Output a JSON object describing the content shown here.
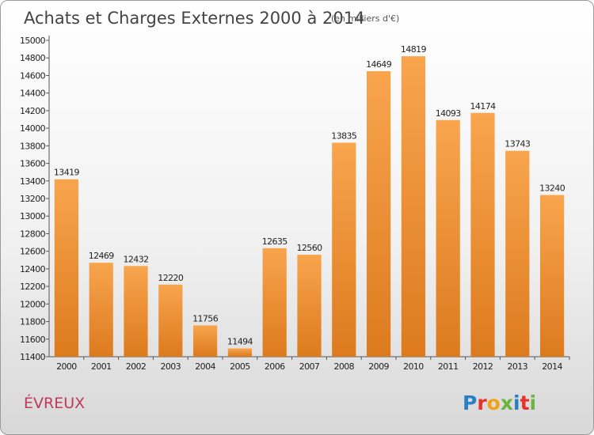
{
  "chart_data": {
    "type": "bar",
    "title": "Achats et Charges Externes 2000 à 2014",
    "subtitle": "(en milliers d'€)",
    "categories": [
      "2000",
      "2001",
      "2002",
      "2003",
      "2004",
      "2005",
      "2006",
      "2007",
      "2008",
      "2009",
      "2010",
      "2011",
      "2012",
      "2013",
      "2014"
    ],
    "values": [
      13419,
      12469,
      12432,
      12220,
      11756,
      11494,
      12635,
      12560,
      13835,
      14649,
      14819,
      14093,
      14174,
      13743,
      13240
    ],
    "ylim": [
      11400,
      15000
    ],
    "yticks": [
      11400,
      11600,
      11800,
      12000,
      12200,
      12400,
      12600,
      12800,
      13000,
      13200,
      13400,
      13600,
      13800,
      14000,
      14200,
      14400,
      14600,
      14800,
      15000
    ],
    "grid": false,
    "xlabel": "",
    "ylabel": ""
  },
  "footer": {
    "city": "ÉVREUX",
    "brand_letters": [
      "P",
      "r",
      "o",
      "x",
      "i",
      "t",
      "i"
    ]
  },
  "colors": {
    "bar_top": "#f8a54e",
    "bar_bottom": "#dd7a1e",
    "city": "#c0395e",
    "brand": [
      "#2a7fc3",
      "#e8312f",
      "#f0a21b",
      "#6cb33f",
      "#2a7fc3",
      "#e8312f",
      "#6cb33f"
    ]
  }
}
